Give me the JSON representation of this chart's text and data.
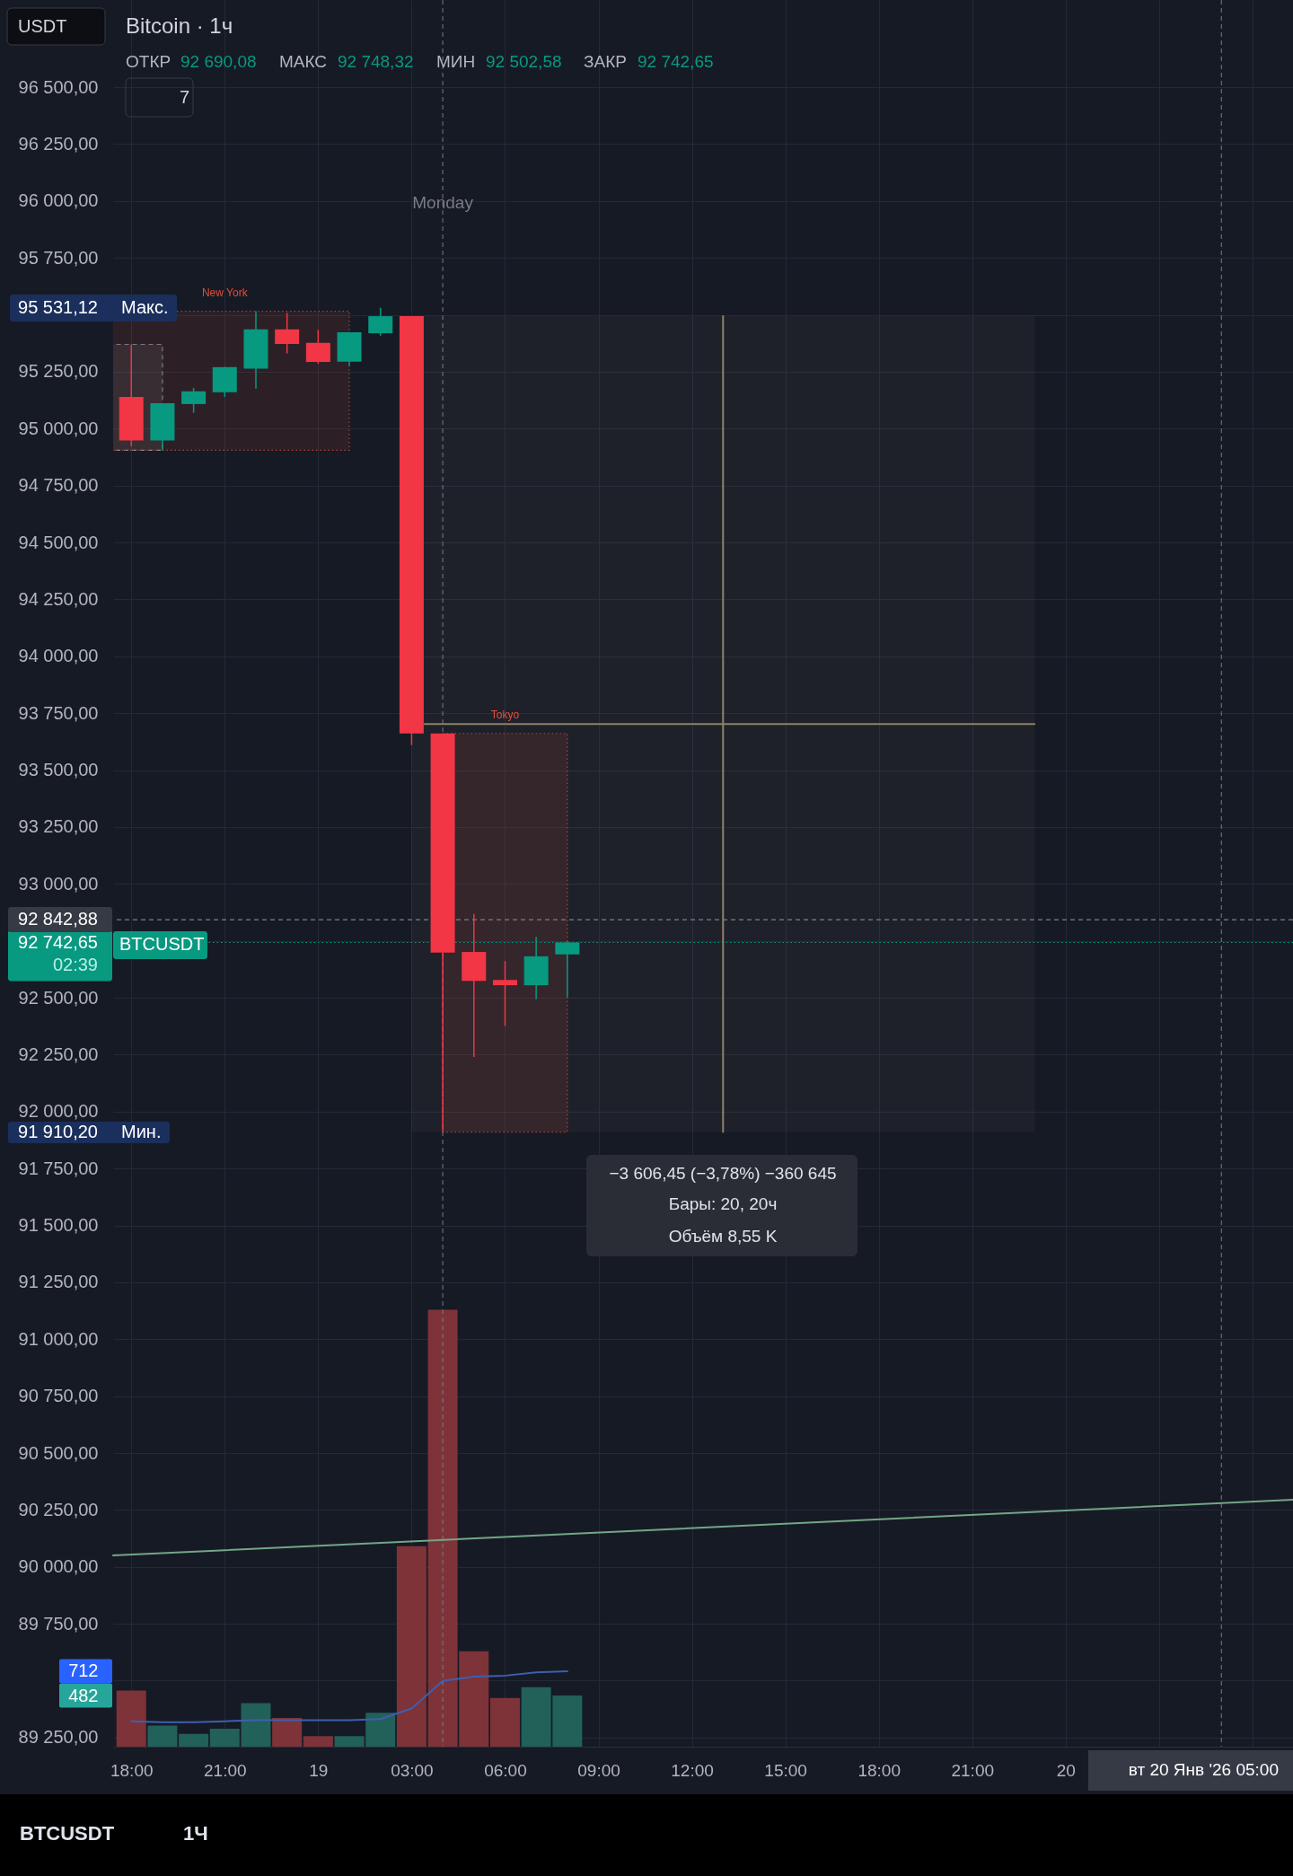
{
  "chart_data": {
    "type": "candlestick",
    "title": "Bitcoin · 1ч",
    "x": [
      "2026-01-18T18:00",
      "2026-01-18T19:00",
      "2026-01-18T20:00",
      "2026-01-18T21:00",
      "2026-01-18T22:00",
      "2026-01-18T23:00",
      "2026-01-19T00:00",
      "2026-01-19T01:00",
      "2026-01-19T02:00",
      "2026-01-19T03:00",
      "2026-01-19T04:00",
      "2026-01-19T05:00",
      "2026-01-19T06:00",
      "2026-01-19T07:00",
      "2026-01-19T08:00"
    ],
    "ohlc": [
      [
        95139,
        95370,
        94922,
        94948
      ],
      [
        94948,
        95112,
        94905,
        95112
      ],
      [
        95108,
        95179,
        95070,
        95164
      ],
      [
        95160,
        95272,
        95139,
        95270
      ],
      [
        95264,
        95516,
        95176,
        95436
      ],
      [
        95436,
        95509,
        95330,
        95372
      ],
      [
        95377,
        95434,
        95285,
        95293
      ],
      [
        95294,
        95424,
        95275,
        95423
      ],
      [
        95419,
        95531.12,
        95408,
        95494
      ],
      [
        95494,
        95494,
        93610,
        93661
      ],
      [
        93661,
        93661,
        91910.2,
        92698
      ],
      [
        92701,
        92868,
        92240,
        92574
      ],
      [
        92578,
        92661,
        92376,
        92555
      ],
      [
        92555,
        92767,
        92493,
        92682
      ],
      [
        92690.08,
        92748.32,
        92502.58,
        92742.65
      ]
    ],
    "colors": [
      "#f23645",
      "#089981",
      "#089981",
      "#089981",
      "#089981",
      "#f23645",
      "#f23645",
      "#089981",
      "#089981",
      "#f23645",
      "#f23645",
      "#f23645",
      "#f23645",
      "#089981",
      "#089981"
    ],
    "series": [
      {
        "type": "bar",
        "axis": "y2",
        "colors": [
          "#7e3339",
          "#22605a",
          "#22605a",
          "#22605a",
          "#22605a",
          "#7e3339",
          "#7e3339",
          "#22605a",
          "#22605a",
          "#7e3339",
          "#7e3339",
          "#7e3339",
          "#7e3339",
          "#22605a",
          "#22605a"
        ],
        "values": [
          530,
          200,
          120,
          170,
          410,
          270,
          100,
          100,
          320,
          1890,
          4120,
          900,
          460,
          560,
          482
        ]
      },
      {
        "type": "line",
        "axis": "y2",
        "color": "#3d5fb0",
        "values": [
          240,
          230,
          230,
          240,
          250,
          250,
          250,
          250,
          260,
          360,
          620,
          660,
          670,
          700,
          712
        ]
      },
      {
        "type": "line",
        "color": "#74a685",
        "x": [
          "2026-01-18T17:25",
          "2026-01-20T07:18"
        ],
        "values": [
          90050,
          90295
        ]
      },
      {
        "type": "line",
        "color": "#8c8266",
        "x": [
          "2026-01-19T03:25",
          "2026-01-19T23:00"
        ],
        "values": [
          93702,
          93702
        ]
      },
      {
        "type": "line",
        "color": "#8c8266",
        "x": [
          "2026-01-19T13:00",
          "2026-01-19T13:00"
        ],
        "values": [
          95494,
          91910.2
        ]
      }
    ],
    "xlim": [
      "2026-01-18T17:25",
      "2026-01-20T07:18"
    ],
    "xticks": [
      {
        "value": "2026-01-18T18:00",
        "label": "18:00"
      },
      {
        "value": "2026-01-18T21:00",
        "label": "21:00"
      },
      {
        "value": "2026-01-19T00:00",
        "label": "19"
      },
      {
        "value": "2026-01-19T03:00",
        "label": "03:00"
      },
      {
        "value": "2026-01-19T06:00",
        "label": "06:00"
      },
      {
        "value": "2026-01-19T09:00",
        "label": "09:00"
      },
      {
        "value": "2026-01-19T12:00",
        "label": "12:00"
      },
      {
        "value": "2026-01-19T15:00",
        "label": "15:00"
      },
      {
        "value": "2026-01-19T18:00",
        "label": "18:00"
      },
      {
        "value": "2026-01-19T21:00",
        "label": "21:00"
      },
      {
        "value": "2026-01-20T00:00",
        "label": "20"
      },
      {
        "value": "2026-01-20T03:00",
        "label": null
      },
      {
        "value": "2026-01-20T06:00",
        "label": null
      }
    ],
    "ylim": [
      89210,
      96883
    ],
    "yticks": [
      {
        "value": 96500,
        "label": "96 500,00"
      },
      {
        "value": 96250,
        "label": "96 250,00"
      },
      {
        "value": 96000,
        "label": "96 000,00"
      },
      {
        "value": 95750,
        "label": "95 750,00"
      },
      {
        "value": 95500,
        "label": null
      },
      {
        "value": 95250,
        "label": "95 250,00"
      },
      {
        "value": 95000,
        "label": "95 000,00"
      },
      {
        "value": 94750,
        "label": "94 750,00"
      },
      {
        "value": 94500,
        "label": "94 500,00"
      },
      {
        "value": 94250,
        "label": "94 250,00"
      },
      {
        "value": 94000,
        "label": "94 000,00"
      },
      {
        "value": 93750,
        "label": "93 750,00"
      },
      {
        "value": 93500,
        "label": "93 500,00"
      },
      {
        "value": 93250,
        "label": "93 250,00"
      },
      {
        "value": 93000,
        "label": "93 000,00"
      },
      {
        "value": 92750,
        "label": null
      },
      {
        "value": 92500,
        "label": "92 500,00"
      },
      {
        "value": 92250,
        "label": "92 250,00"
      },
      {
        "value": 92000,
        "label": "92 000,00"
      },
      {
        "value": 91750,
        "label": "91 750,00"
      },
      {
        "value": 91500,
        "label": "91 500,00"
      },
      {
        "value": 91250,
        "label": "91 250,00"
      },
      {
        "value": 91000,
        "label": "91 000,00"
      },
      {
        "value": 90750,
        "label": "90 750,00"
      },
      {
        "value": 90500,
        "label": "90 500,00"
      },
      {
        "value": 90250,
        "label": "90 250,00"
      },
      {
        "value": 90000,
        "label": "90 000,00"
      },
      {
        "value": 89750,
        "label": "89 750,00"
      },
      {
        "value": 89500,
        "label": null
      },
      {
        "value": 89250,
        "label": "89 250,00"
      }
    ],
    "y2lim": [
      0,
      16470
    ],
    "y2ticks": [
      482,
      712
    ],
    "grid": true,
    "bands": [
      {
        "axis": "x",
        "from": "2026-01-19T03:00",
        "to": "2026-01-19T23:00",
        "color": "#8c8266"
      },
      {
        "axis": "x",
        "from": "2026-01-18T17:00",
        "to": "2026-01-19T01:00",
        "label": "New York",
        "color": "#e0503a"
      },
      {
        "axis": "x",
        "from": "2026-01-18T17:00",
        "to": "2026-01-18T19:00",
        "color": "#9598a1"
      },
      {
        "axis": "x",
        "from": "2026-01-19T04:00",
        "to": "2026-01-19T08:00",
        "label": "Tokyo",
        "color": "#e0503a"
      }
    ],
    "ref_lines": [
      {
        "axis": "x",
        "value": "2026-01-19T04:00",
        "label": "Monday",
        "line_style": "dashed",
        "color": "#787b86"
      },
      {
        "axis": "x",
        "value": "2026-01-20T05:00",
        "label": "вт 20 Янв '26 05:00",
        "line_style": "dashed",
        "color": "#787b86"
      },
      {
        "axis": "y",
        "value": 92742.65,
        "label": "92 742,65",
        "line_style": "dotted",
        "color": "#089981"
      },
      {
        "axis": "y",
        "value": 92842.88,
        "label": "92 842,88",
        "line_style": "dashed",
        "color": "#9598a1"
      }
    ],
    "annotations": [
      "USDT",
      "ОТКР",
      "92 690,08",
      "МАКС",
      "92 748,32",
      "МИН",
      "92 502,58",
      "ЗАКР",
      "92 742,65",
      "7",
      "95 531,12",
      "Макс.",
      "91 910,20",
      "Мин.",
      "02:39",
      "BTCUSDT",
      "−3 606,45 (−3,78%) −360 645",
      "Бары: 20, 20ч",
      "Объём 8,55 K",
      "BTCUSDT",
      "1Ч"
    ]
  }
}
